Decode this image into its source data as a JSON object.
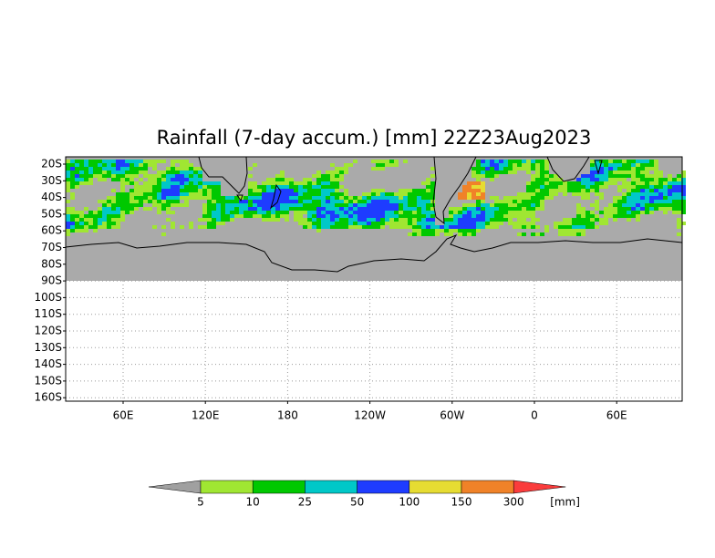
{
  "title": "Rainfall (7-day accum.) [mm] 22Z23Aug2023",
  "lat_labels": [
    "20S",
    "30S",
    "40S",
    "50S",
    "60S",
    "70S",
    "80S",
    "90S",
    "100S",
    "110S",
    "120S",
    "130S",
    "140S",
    "150S",
    "160S"
  ],
  "lon_labels": [
    "60E",
    "120E",
    "180",
    "120W",
    "60W",
    "0",
    "60E"
  ],
  "legend": {
    "levels": [
      5,
      10,
      25,
      50,
      100,
      150,
      300
    ],
    "unit": "[mm]",
    "colors": [
      "#a0a0a0",
      "#a0e632",
      "#00c800",
      "#00c8c8",
      "#1e3cff",
      "#e6dc32",
      "#f08228",
      "#fa3c3c"
    ]
  }
}
